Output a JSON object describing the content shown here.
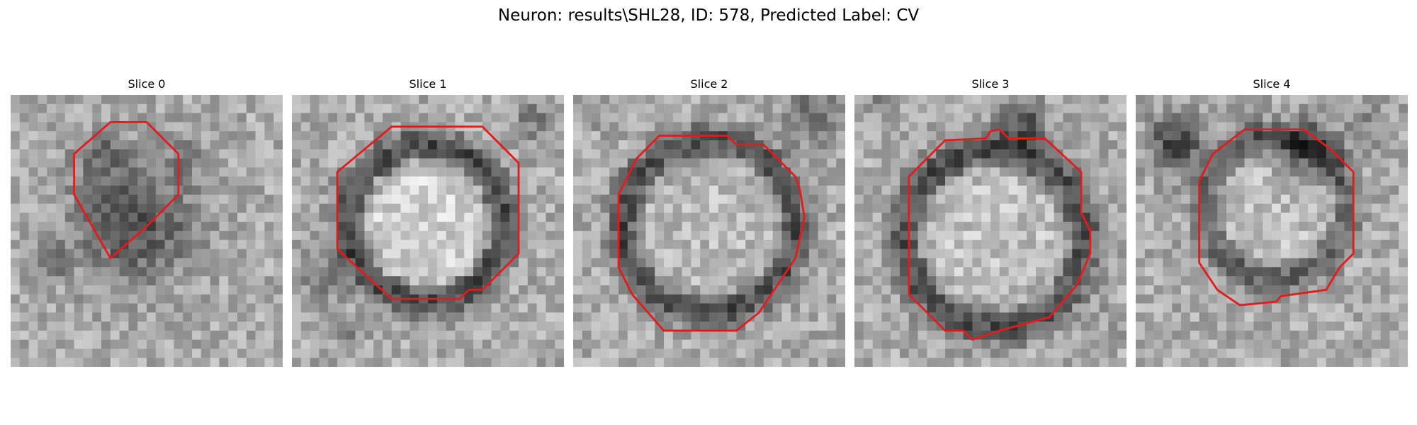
{
  "figure": {
    "title": "Neuron: results\\SHL28, ID: 578, Predicted Label: CV",
    "contour_color": "#e41a1c"
  },
  "panels": [
    {
      "title": "Slice 0"
    },
    {
      "title": "Slice 1"
    },
    {
      "title": "Slice 2"
    },
    {
      "title": "Slice 3"
    },
    {
      "title": "Slice 4"
    }
  ]
}
